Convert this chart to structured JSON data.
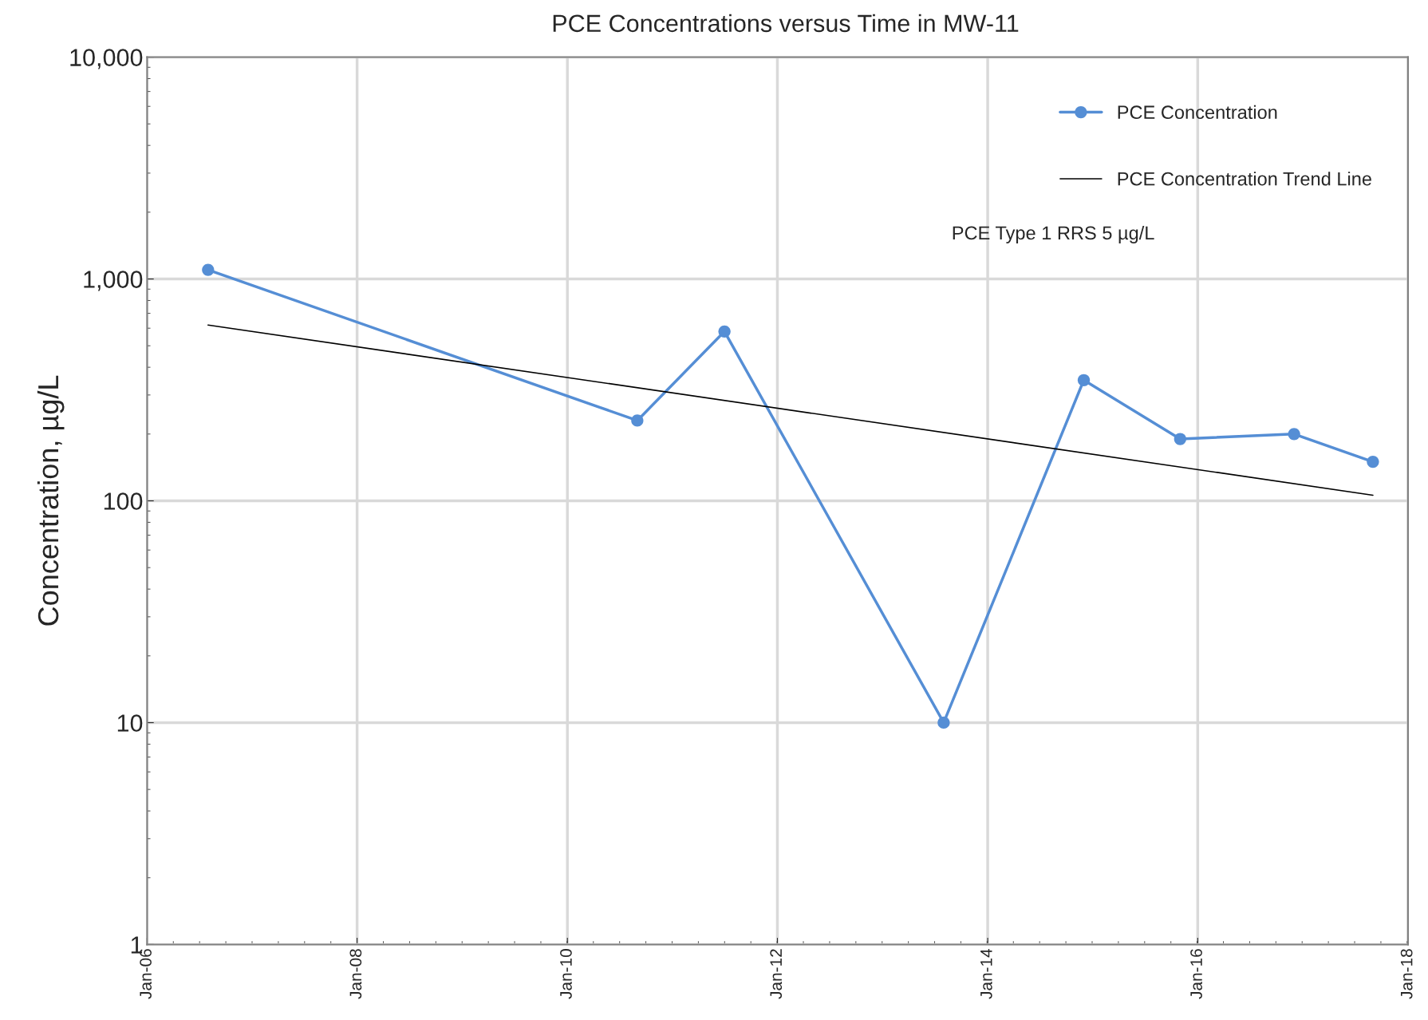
{
  "chart_data": {
    "type": "line",
    "title": "PCE Concentrations versus Time in MW-11",
    "ylabel": "Concentration, µg/L",
    "series": [
      {
        "name": "PCE Concentration",
        "color": "#558ed5",
        "marker": "circle",
        "x": [
          "2006-08",
          "2010-09",
          "2011-07",
          "2013-08",
          "2014-12",
          "2015-11",
          "2016-12",
          "2017-09"
        ],
        "values": [
          1100,
          230,
          580,
          10,
          350,
          190,
          200,
          150
        ]
      },
      {
        "name": "PCE Concentration Trend Line",
        "color": "#000000",
        "marker": "none",
        "x": [
          "2006-08",
          "2017-09"
        ],
        "values": [
          620,
          106
        ]
      }
    ],
    "log": true,
    "ylim": [
      1,
      10000
    ],
    "yticks": [
      1,
      10,
      100,
      {
        "value": 1000,
        "label": "1,000"
      },
      {
        "value": 10000,
        "label": "10,000"
      }
    ],
    "xlim": [
      "2006-01",
      "2018-01"
    ],
    "xticks": [
      {
        "value": "2006-01",
        "label": "Jan-06"
      },
      {
        "value": "2008-01",
        "label": "Jan-08"
      },
      {
        "value": "2010-01",
        "label": "Jan-10"
      },
      {
        "value": "2012-01",
        "label": "Jan-12"
      },
      {
        "value": "2014-01",
        "label": "Jan-14"
      },
      {
        "value": "2016-01",
        "label": "Jan-16"
      },
      {
        "value": "2018-01",
        "label": "Jan-18"
      }
    ],
    "grid": true,
    "legend": "top right",
    "annotations": [
      "PCE Type 1 RRS 5 µg/L"
    ]
  }
}
